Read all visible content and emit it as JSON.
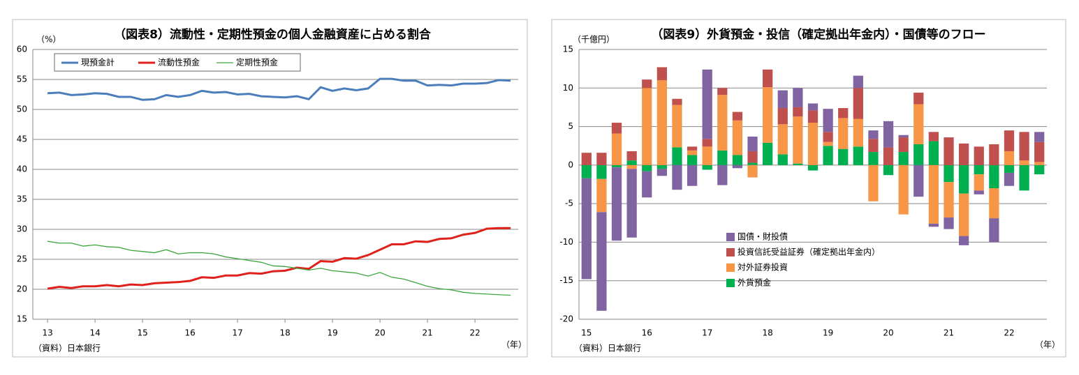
{
  "chart_data": [
    {
      "type": "line",
      "title": "（図表8）流動性・定期性預金の個人金融資産に占める割合",
      "y_unit": "（%）",
      "x_unit": "（年）",
      "source": "（資料）日本銀行",
      "x": [
        13,
        13.25,
        13.5,
        13.75,
        14,
        14.25,
        14.5,
        14.75,
        15,
        15.25,
        15.5,
        15.75,
        16,
        16.25,
        16.5,
        16.75,
        17,
        17.25,
        17.5,
        17.75,
        18,
        18.25,
        18.5,
        18.75,
        19,
        19.25,
        19.5,
        19.75,
        20,
        20.25,
        20.5,
        20.75,
        21,
        21.25,
        21.5,
        21.75,
        22,
        22.25,
        22.5,
        22.75
      ],
      "xlim": [
        12.69,
        22.91
      ],
      "xticks": [
        13,
        14,
        15,
        16,
        17,
        18,
        19,
        20,
        21,
        22
      ],
      "ylim": [
        15,
        60
      ],
      "yticks": [
        15,
        20,
        25,
        30,
        35,
        40,
        45,
        50,
        55,
        60
      ],
      "grid": true,
      "legend": "top-left",
      "series": [
        {
          "name": "現預金計",
          "color": "#4a7ebb",
          "values": [
            52.7,
            52.8,
            52.4,
            52.5,
            52.7,
            52.6,
            52.1,
            52.1,
            51.6,
            51.7,
            52.4,
            52.1,
            52.4,
            53.1,
            52.8,
            52.9,
            52.5,
            52.6,
            52.2,
            52.1,
            52.0,
            52.2,
            51.7,
            53.7,
            53.1,
            53.5,
            53.2,
            53.5,
            55.1,
            55.1,
            54.8,
            54.8,
            54.0,
            54.1,
            54.0,
            54.3,
            54.3,
            54.4,
            54.9,
            54.8
          ]
        },
        {
          "name": "流動性預金",
          "color": "#e0201b",
          "values": [
            20.1,
            20.4,
            20.2,
            20.5,
            20.5,
            20.7,
            20.5,
            20.8,
            20.7,
            21.0,
            21.1,
            21.2,
            21.4,
            22.0,
            21.9,
            22.3,
            22.3,
            22.7,
            22.6,
            23.0,
            23.1,
            23.6,
            23.4,
            24.7,
            24.6,
            25.2,
            25.1,
            25.7,
            26.6,
            27.5,
            27.5,
            28.0,
            27.9,
            28.4,
            28.5,
            29.1,
            29.4,
            30.1,
            30.2,
            30.2
          ]
        },
        {
          "name": "定期性預金",
          "color": "#3aa63a",
          "values": [
            28.0,
            27.7,
            27.7,
            27.2,
            27.4,
            27.1,
            27.0,
            26.5,
            26.3,
            26.1,
            26.6,
            25.9,
            26.1,
            26.1,
            25.9,
            25.4,
            25.1,
            24.8,
            24.5,
            23.9,
            23.8,
            23.5,
            23.2,
            23.5,
            23.1,
            22.9,
            22.7,
            22.2,
            22.8,
            22.0,
            21.7,
            21.1,
            20.5,
            20.1,
            19.9,
            19.5,
            19.3,
            19.2,
            19.1,
            19.0
          ]
        }
      ]
    },
    {
      "type": "bar",
      "stacked": true,
      "title": "（図表9）外貨預金・投信（確定拠出年金内）・国債等のフロー",
      "y_unit": "（千億円）",
      "x_unit": "（年）",
      "source": "（資料）日本銀行",
      "categories": [
        "15",
        null,
        null,
        null,
        "16",
        null,
        null,
        null,
        "17",
        null,
        null,
        null,
        "18",
        null,
        null,
        null,
        "19",
        null,
        null,
        null,
        "20",
        null,
        null,
        null,
        "21",
        null,
        null,
        null,
        "22",
        null,
        null
      ],
      "ylim": [
        -20,
        15
      ],
      "yticks": [
        -20,
        -15,
        -10,
        -5,
        0,
        5,
        10,
        15
      ],
      "grid": true,
      "legend": "bottom-left",
      "series": [
        {
          "name": "国債・財投債",
          "color": "#8064a2",
          "values": [
            -13.1,
            -12.8,
            -9.5,
            -8.9,
            -3.4,
            -0.9,
            -3.2,
            -2.7,
            9.0,
            -2.6,
            -0.4,
            1.9,
            0,
            2.3,
            2.5,
            0.9,
            3.0,
            0,
            1.6,
            1.1,
            3.4,
            0.3,
            -4.1,
            -0.4,
            -1.5,
            -1.2,
            -0.5,
            -3.1,
            -1.7,
            0,
            1.3
          ]
        },
        {
          "name": "投資信託受益証券（確定拠出年金内）",
          "color": "#c0504d",
          "values": [
            1.6,
            1.6,
            1.4,
            1.2,
            1.1,
            1.7,
            0.8,
            0.5,
            1.0,
            0.9,
            1.1,
            1.5,
            2.3,
            2.1,
            1.2,
            1.6,
            1.3,
            1.3,
            4.0,
            1.7,
            2.3,
            1.9,
            1.5,
            1.2,
            3.6,
            2.8,
            2.4,
            2.7,
            2.7,
            3.7,
            2.6
          ]
        },
        {
          "name": "対外証券投資",
          "color": "#f79646",
          "values": [
            0,
            -4.3,
            4.1,
            -0.5,
            10.0,
            11.0,
            5.5,
            0.6,
            2.4,
            7.2,
            4.5,
            -1.6,
            7.2,
            3.9,
            6.1,
            5.5,
            0.5,
            4.0,
            3.6,
            -4.7,
            0,
            -6.4,
            5.2,
            -7.6,
            -4.6,
            -5.5,
            -2.1,
            -3.9,
            1.8,
            0.6,
            0.4
          ]
        },
        {
          "name": "外貨預金",
          "color": "#00b050",
          "values": [
            -1.7,
            -1.8,
            -0.3,
            0.6,
            -0.8,
            -0.5,
            2.3,
            1.3,
            -0.6,
            1.9,
            1.3,
            0.3,
            2.9,
            1.4,
            0.2,
            -0.7,
            2.5,
            2.1,
            2.4,
            1.7,
            -1.3,
            1.7,
            2.7,
            3.1,
            -2.2,
            -3.7,
            -1.2,
            -3.0,
            -1.0,
            -3.3,
            -1.2
          ]
        }
      ]
    }
  ]
}
